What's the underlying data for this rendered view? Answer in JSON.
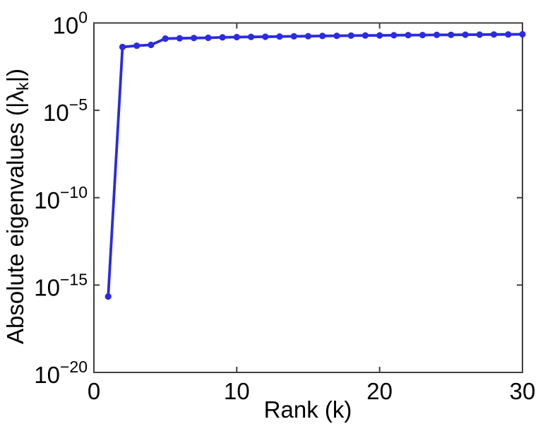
{
  "figure": {
    "background": "#ffffff"
  },
  "chart_data": {
    "type": "line",
    "title": "",
    "xlabel": "Rank (k)",
    "ylabel": "Absolute eigenvalues (|λk|)",
    "ylabel_parts": {
      "pre": "Absolute eigenvalues (|λ",
      "sub": "k",
      "post": "|)"
    },
    "x": [
      1,
      2,
      3,
      4,
      5,
      6,
      7,
      8,
      9,
      10,
      11,
      12,
      13,
      14,
      15,
      16,
      17,
      18,
      19,
      20,
      21,
      22,
      23,
      24,
      25,
      26,
      27,
      28,
      29,
      30
    ],
    "values": [
      2.2e-16,
      0.042,
      0.05,
      0.056,
      0.128,
      0.133,
      0.137,
      0.142,
      0.15,
      0.155,
      0.159,
      0.163,
      0.167,
      0.172,
      0.176,
      0.18,
      0.184,
      0.188,
      0.192,
      0.195,
      0.198,
      0.201,
      0.204,
      0.207,
      0.21,
      0.213,
      0.216,
      0.219,
      0.222,
      0.225
    ],
    "series_name": "absolute-eigenvalues",
    "xlim": [
      0,
      30
    ],
    "x_ticks": [
      0,
      10,
      20,
      30
    ],
    "y_scale": "log",
    "ylim_exponents": [
      -20,
      0
    ],
    "y_tick_exponents": [
      0,
      -5,
      -10,
      -15,
      -20
    ],
    "grid": false,
    "legend": null,
    "box": true,
    "line_color": "#2b2be1",
    "marker": "dot",
    "marker_color": "#2b2be1",
    "axis_color": "#3f3f3f",
    "minus_sign": "−"
  }
}
